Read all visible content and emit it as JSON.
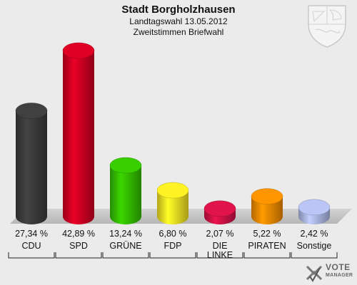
{
  "header": {
    "title": "Stadt Borgholzhausen",
    "subtitle": "Landtagswahl 13.05.2012",
    "subtitle2": "Zweitstimmen Briefwahl"
  },
  "logo": {
    "line1": "VOTE",
    "line2": "MANAGER"
  },
  "chart_data": {
    "type": "bar",
    "title": "Stadt Borgholzhausen",
    "categories": [
      "CDU",
      "SPD",
      "GRÜNE",
      "FDP",
      "DIE LINKE",
      "PIRATEN",
      "Sonstige"
    ],
    "category_lines": [
      [
        "CDU"
      ],
      [
        "SPD"
      ],
      [
        "GRÜNE"
      ],
      [
        "FDP"
      ],
      [
        "DIE",
        "LINKE"
      ],
      [
        "PIRATEN"
      ],
      [
        "Sonstige"
      ]
    ],
    "values": [
      27.34,
      42.89,
      13.24,
      6.8,
      2.07,
      5.22,
      2.42
    ],
    "value_labels": [
      "27,34 %",
      "42,89 %",
      "13,24 %",
      "6,80 %",
      "2,07 %",
      "5,22 %",
      "2,42 %"
    ],
    "colors": [
      "#3a3a3a",
      "#cc0022",
      "#33bb00",
      "#eedd22",
      "#cc1144",
      "#ee8800",
      "#aab4e0"
    ],
    "ylim": [
      0,
      42.89
    ]
  }
}
